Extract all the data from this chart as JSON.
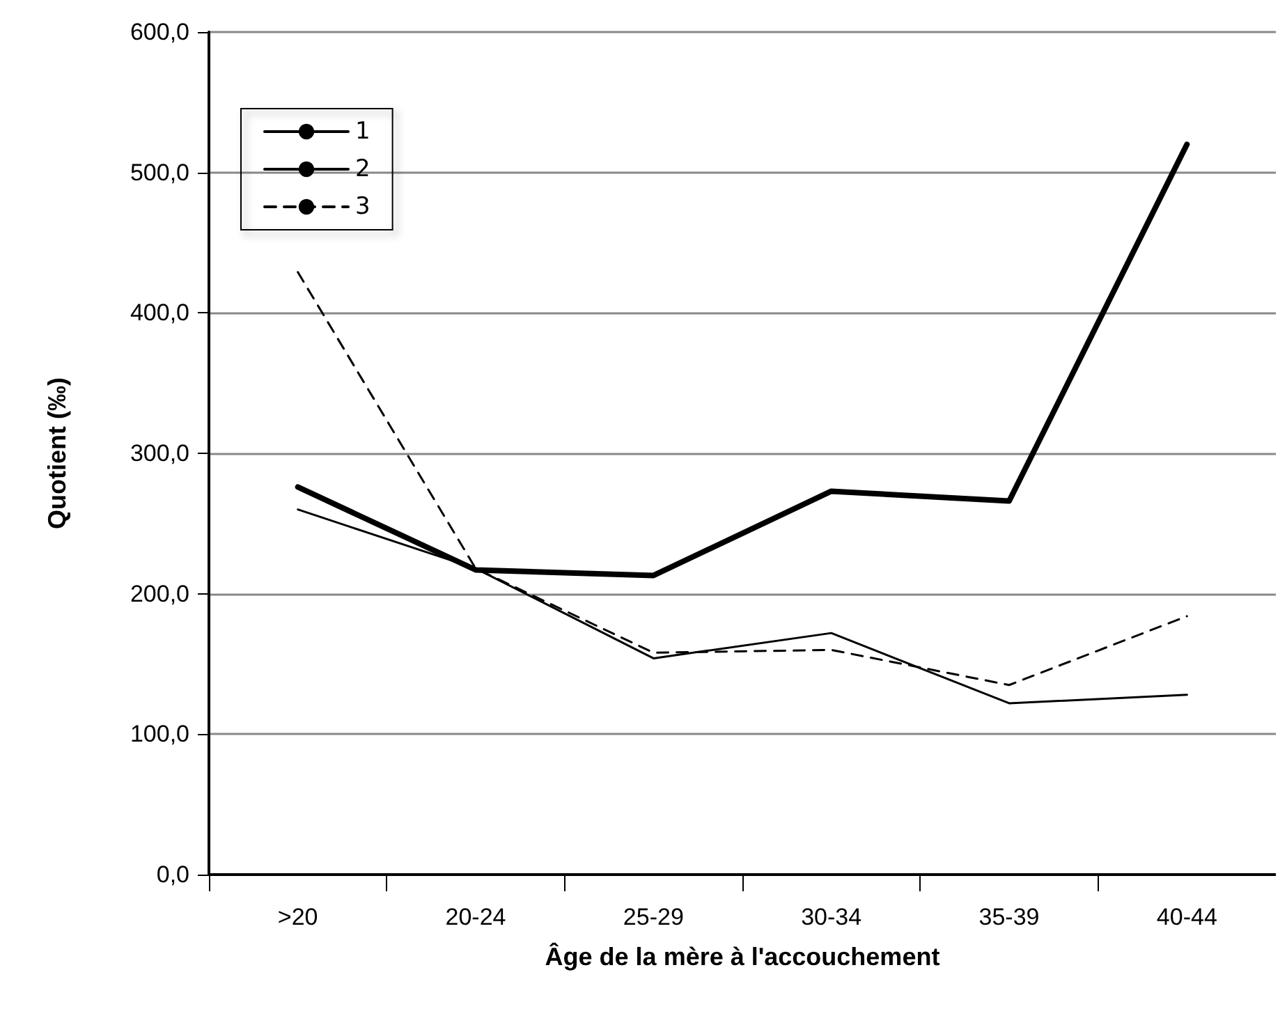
{
  "chart_data": {
    "type": "line",
    "xlabel": "Âge de la mère à l'accouchement",
    "ylabel": "Quotient (‰)",
    "categories": [
      ">20",
      "20-24",
      "25-29",
      "30-34",
      "35-39",
      "40-44"
    ],
    "series": [
      {
        "name": "1",
        "color": "#000000",
        "line_style": "solid",
        "values": [
          276,
          217,
          213,
          273,
          266,
          520
        ]
      },
      {
        "name": "2",
        "color": "#000000",
        "line_style": "solid",
        "values": [
          260,
          218,
          154,
          172,
          122,
          128
        ]
      },
      {
        "name": "3",
        "color": "#000000",
        "line_style": "dashed",
        "values": [
          429,
          218,
          158,
          160,
          135,
          184
        ]
      }
    ],
    "ylim": [
      0,
      600
    ],
    "yticks": [
      {
        "value": 0,
        "label": "0,0"
      },
      {
        "value": 100,
        "label": "100,0"
      },
      {
        "value": 200,
        "label": "200,0"
      },
      {
        "value": 300,
        "label": "300,0"
      },
      {
        "value": 400,
        "label": "400,0"
      },
      {
        "value": 500,
        "label": "500,0"
      },
      {
        "value": 600,
        "label": "600,0"
      }
    ],
    "grid": "y",
    "legend": "top left",
    "marker": "none"
  }
}
